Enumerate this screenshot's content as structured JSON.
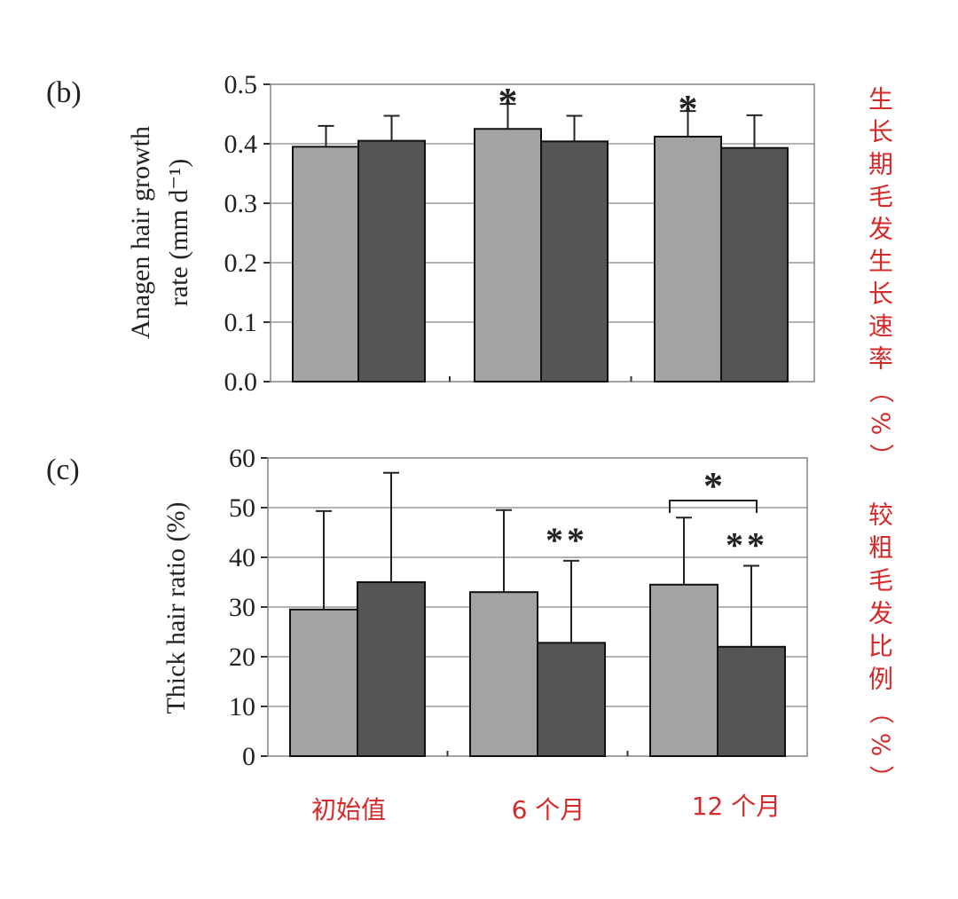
{
  "chart_data": [
    {
      "type": "bar",
      "panel_label": "(b)",
      "ylabel_lines": [
        "Anagen hair growth",
        "rate (mm d⁻¹)"
      ],
      "side_label": "生长期毛发生长速率（%）",
      "ylim": [
        0,
        0.5
      ],
      "yticks": [
        "0.0",
        "0.1",
        "0.2",
        "0.3",
        "0.4",
        "0.5"
      ],
      "ytick_values": [
        0,
        0.1,
        0.2,
        0.3,
        0.4,
        0.5
      ],
      "grid": true,
      "categories": [
        "初始值",
        "6 个月",
        "12 个月"
      ],
      "series": [
        {
          "color": "#a3a3a3",
          "values": [
            0.395,
            0.425,
            0.412
          ],
          "errors": [
            0.035,
            0.042,
            0.043
          ]
        },
        {
          "color": "#555555",
          "values": [
            0.405,
            0.404,
            0.393
          ],
          "errors": [
            0.042,
            0.043,
            0.055
          ]
        }
      ],
      "annotations": [
        {
          "text": "*",
          "category": 1,
          "series": 0
        },
        {
          "text": "*",
          "category": 2,
          "series": 0
        }
      ]
    },
    {
      "type": "bar",
      "panel_label": "(c)",
      "ylabel": "Thick hair ratio (%)",
      "side_label": "较粗毛发比例（%）",
      "ylim": [
        0,
        60
      ],
      "yticks": [
        "0",
        "10",
        "20",
        "30",
        "40",
        "50",
        "60"
      ],
      "ytick_values": [
        0,
        10,
        20,
        30,
        40,
        50,
        60
      ],
      "grid": true,
      "categories": [
        "初始值",
        "6 个月",
        "12 个月"
      ],
      "series": [
        {
          "color": "#a3a3a3",
          "values": [
            29.5,
            33.0,
            34.5
          ],
          "errors": [
            19.8,
            16.5,
            13.5
          ]
        },
        {
          "color": "#555555",
          "values": [
            35.0,
            22.8,
            22.0
          ],
          "errors": [
            22.0,
            16.5,
            16.3
          ]
        }
      ],
      "annotations": [
        {
          "text": "**",
          "category": 1,
          "series": 1
        },
        {
          "text": "**",
          "category": 2,
          "series": 1
        }
      ],
      "bracket": {
        "text": "*",
        "category": 2,
        "y": 50
      }
    }
  ],
  "xlabels": [
    "初始值",
    "6 个月",
    "12 个月"
  ]
}
